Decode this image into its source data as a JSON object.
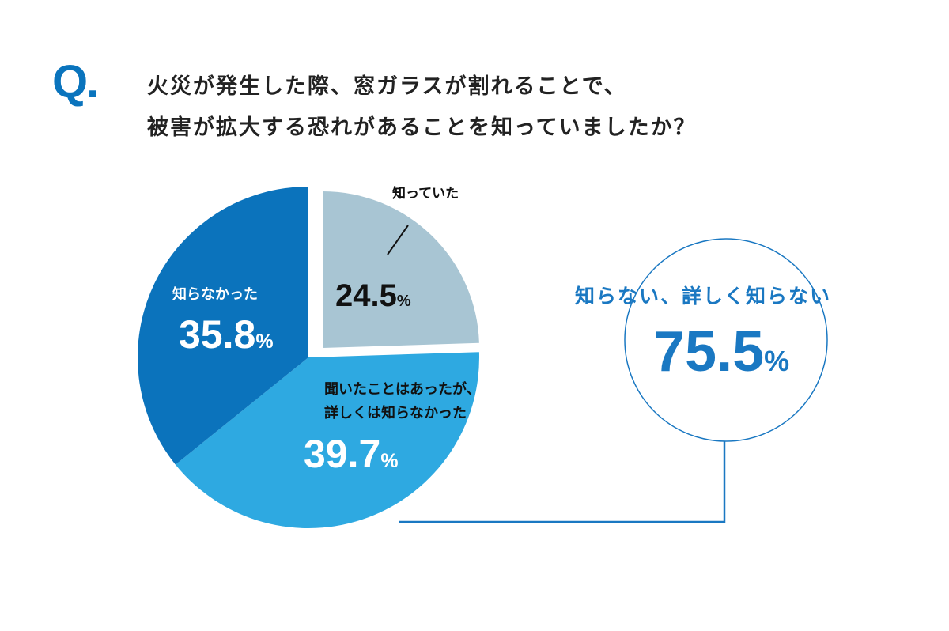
{
  "header": {
    "q_mark": "Q.",
    "question_line1": "火災が発生した際、窓ガラスが割れることで、",
    "question_line2": "被害が拡大する恐れがあることを知っていましたか？"
  },
  "chart_data": {
    "type": "pie",
    "title": "火災が発生した際、窓ガラスが割れることで、被害が拡大する恐れがあることを知っていましたか？",
    "slices": [
      {
        "label": "知っていた",
        "value": 24.5,
        "color": "#a8c5d3",
        "text_color": "#111111",
        "exploded": true
      },
      {
        "label_line1": "聞いたことはあったが、",
        "label_line2": "詳しくは知らなかった",
        "label": "聞いたことはあったが、詳しくは知らなかった",
        "value": 39.7,
        "color": "#2ea9e1",
        "text_color": "#ffffff"
      },
      {
        "label": "知らなかった",
        "value": 35.8,
        "color": "#0b73bc",
        "text_color": "#ffffff"
      }
    ],
    "unit": "%",
    "summary": {
      "label": "知らない、詳しく知らない",
      "value": 75.5,
      "color": "#1a78c2"
    }
  }
}
